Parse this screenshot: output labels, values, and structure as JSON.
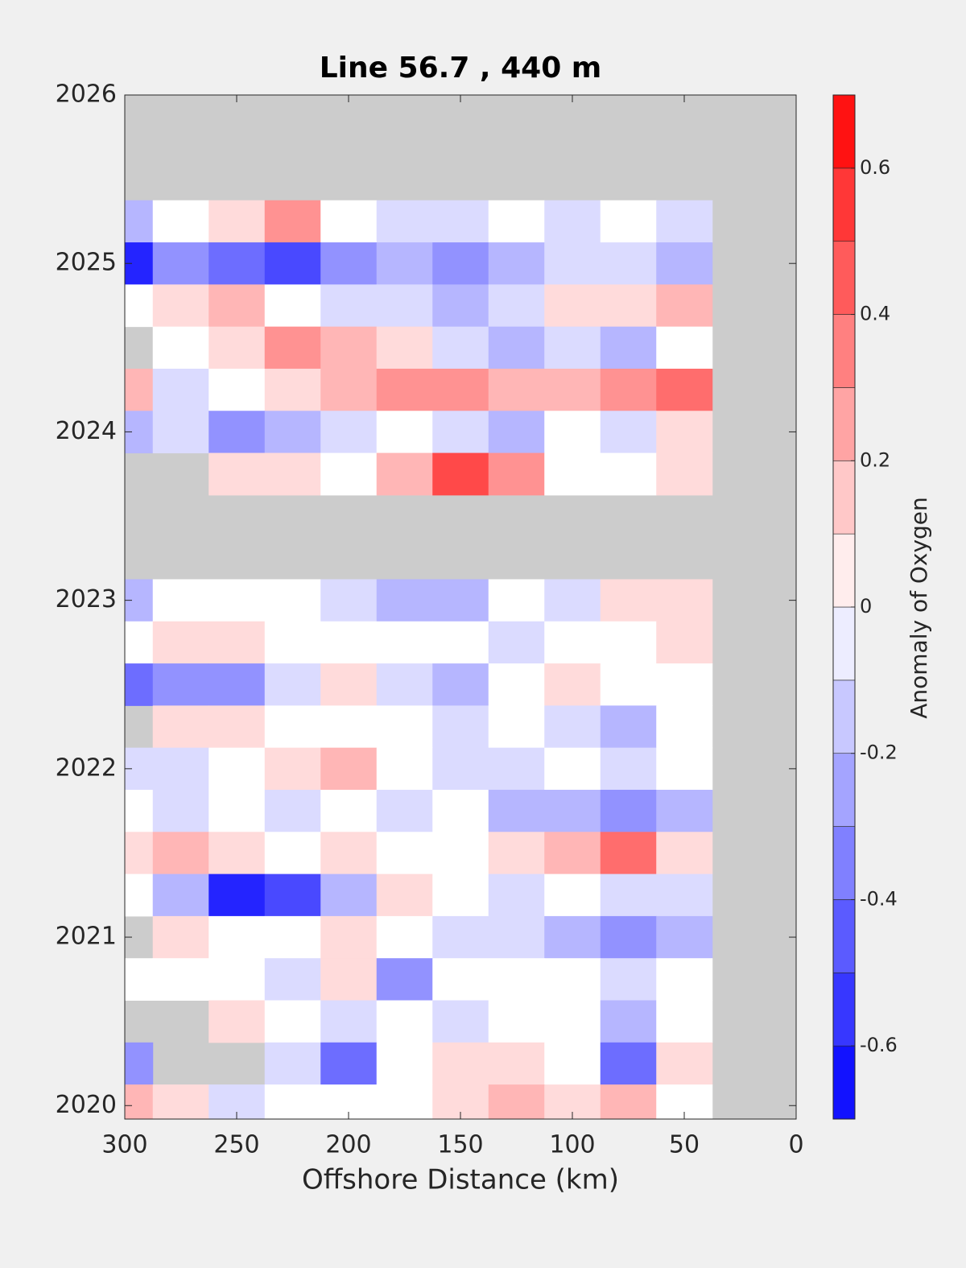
{
  "chart_data": {
    "type": "contour",
    "title": "Line 56.7 , 440 m",
    "xlabel": "Offshore Distance (km)",
    "colorbar_label": "Anomaly of Oxygen",
    "x": [
      300,
      275,
      250,
      225,
      200,
      175,
      150,
      125,
      100,
      75,
      50
    ],
    "y": [
      2025.25,
      2025,
      2024.75,
      2024.5,
      2024.25,
      2024,
      2023.75,
      2023.5,
      2023.25,
      2023,
      2022.75,
      2022.5,
      2022.25,
      2022,
      2021.75,
      2021.5,
      2021.25,
      2021,
      2020.75,
      2020.5,
      2020.25,
      2020
    ],
    "z": [
      [
        -0.2,
        0,
        0.1,
        0.3,
        0,
        -0.1,
        -0.1,
        0,
        -0.1,
        0,
        -0.1
      ],
      [
        -0.6,
        -0.3,
        -0.4,
        -0.5,
        -0.3,
        -0.2,
        -0.3,
        -0.2,
        -0.1,
        -0.1,
        -0.2
      ],
      [
        0,
        0.1,
        0.2,
        0,
        -0.1,
        -0.1,
        -0.2,
        -0.1,
        0.1,
        0.1,
        0.2
      ],
      [
        null,
        0,
        0.1,
        0.3,
        0.2,
        0.1,
        -0.1,
        -0.2,
        -0.1,
        -0.2,
        0
      ],
      [
        0.2,
        -0.1,
        0,
        0.1,
        0.2,
        0.3,
        0.3,
        0.2,
        0.2,
        0.3,
        0.4
      ],
      [
        -0.2,
        -0.1,
        -0.3,
        -0.2,
        -0.1,
        0,
        -0.1,
        -0.2,
        0,
        -0.1,
        0.1
      ],
      [
        null,
        null,
        0.1,
        0.1,
        0,
        0.2,
        0.5,
        0.3,
        0,
        0,
        0.1
      ],
      [
        null,
        null,
        null,
        null,
        null,
        null,
        null,
        null,
        null,
        null,
        null
      ],
      [
        null,
        null,
        null,
        null,
        null,
        null,
        null,
        null,
        null,
        null,
        null
      ],
      [
        -0.2,
        0,
        0,
        0,
        -0.1,
        -0.2,
        -0.2,
        0,
        -0.1,
        0.1,
        0.1
      ],
      [
        0,
        0.1,
        0.1,
        0,
        0,
        0,
        0,
        -0.1,
        0,
        0,
        0.1
      ],
      [
        -0.4,
        -0.3,
        -0.3,
        -0.1,
        0.1,
        -0.1,
        -0.2,
        0,
        0.1,
        0,
        0
      ],
      [
        null,
        0.1,
        0.1,
        0,
        0,
        0,
        -0.1,
        0,
        -0.1,
        -0.2,
        0
      ],
      [
        -0.1,
        -0.1,
        0,
        0.1,
        0.2,
        0,
        -0.1,
        -0.1,
        0,
        -0.1,
        0
      ],
      [
        0,
        -0.1,
        0,
        -0.1,
        0,
        -0.1,
        0,
        -0.2,
        -0.2,
        -0.3,
        -0.2
      ],
      [
        0.1,
        0.2,
        0.1,
        0,
        0.1,
        0,
        0,
        0.1,
        0.2,
        0.4,
        0.1
      ],
      [
        0,
        -0.2,
        -0.6,
        -0.5,
        -0.2,
        0.1,
        0,
        -0.1,
        0,
        -0.1,
        -0.1
      ],
      [
        null,
        0.1,
        0,
        0,
        0.1,
        0,
        -0.1,
        -0.1,
        -0.2,
        -0.3,
        -0.2
      ],
      [
        0,
        0,
        0,
        -0.1,
        0.1,
        -0.3,
        0,
        0,
        0,
        -0.1,
        0
      ],
      [
        null,
        null,
        0.1,
        0,
        -0.1,
        0,
        -0.1,
        0,
        0,
        -0.2,
        0
      ],
      [
        -0.3,
        null,
        null,
        -0.1,
        -0.4,
        0,
        0.1,
        0.1,
        0,
        -0.4,
        0.1
      ],
      [
        0.2,
        0.1,
        -0.1,
        0,
        0,
        0,
        0.1,
        0.2,
        0.1,
        0.2,
        0
      ]
    ],
    "xlim": [
      300,
      0
    ],
    "ylim": [
      2019.92,
      2026
    ],
    "xticks": [
      300,
      250,
      200,
      150,
      100,
      50,
      0
    ],
    "yticks": [
      2020,
      2021,
      2022,
      2023,
      2024,
      2025,
      2026
    ],
    "clim": [
      -0.7,
      0.7
    ],
    "cticks": [
      -0.6,
      -0.4,
      -0.2,
      0,
      0.2,
      0.4,
      0.6
    ],
    "colors": {
      "low": "#0000ff",
      "mid": "#ffffff",
      "high": "#ff0000",
      "missing": "#cccccc"
    }
  }
}
